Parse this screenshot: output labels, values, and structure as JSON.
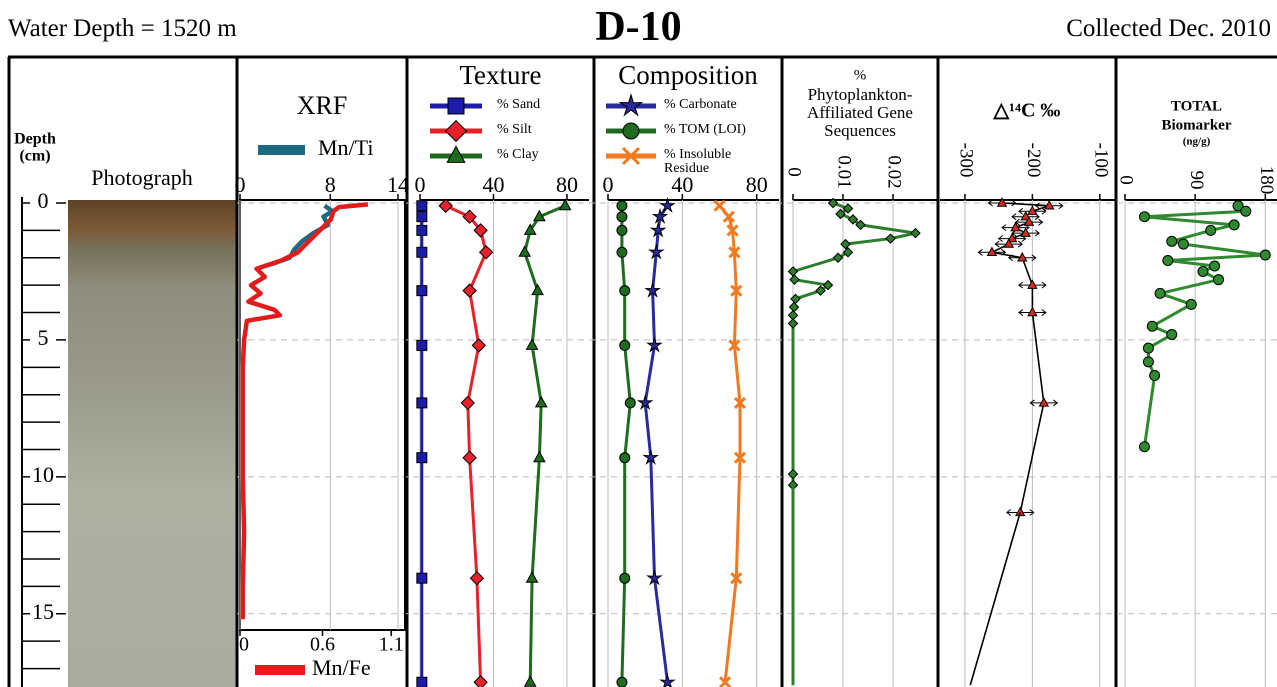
{
  "header": {
    "left": "Water Depth = 1520 m",
    "title": "D-10",
    "right": "Collected Dec. 2010"
  },
  "chart_data": [
    {
      "type": "depth-axis",
      "title": [
        "Depth",
        "(cm)"
      ],
      "ylim": [
        0,
        17.6
      ],
      "yticks": [
        0,
        5,
        10,
        15
      ],
      "minor_yticks": [
        1,
        2,
        3,
        4,
        6,
        7,
        8,
        9,
        11,
        12,
        13,
        14,
        16,
        17
      ]
    },
    {
      "type": "photo",
      "title": [
        "Photograph"
      ]
    },
    {
      "type": "line",
      "title": [
        "XRF"
      ],
      "xlim": [
        0,
        14
      ],
      "xticks": [
        0,
        8,
        14
      ],
      "x2lim": [
        0,
        1.2
      ],
      "x2ticks": [
        0,
        0.6,
        1.1
      ],
      "grid": true,
      "series": [
        {
          "name": "Mn/Ti",
          "color": "#1b6a82",
          "marker": null,
          "depth": [
            0.1,
            0.3,
            0.5,
            0.8,
            1.1,
            1.4,
            1.7,
            2.0,
            2.2,
            2.3
          ],
          "values": [
            7.5,
            8.2,
            7.4,
            7.8,
            6.5,
            5.5,
            4.8,
            4.4,
            3.0,
            2.2
          ]
        },
        {
          "name": "Mn/Fe",
          "color": "#e21b1b",
          "marker": null,
          "axis": "x2",
          "depth": [
            0.05,
            0.15,
            0.3,
            0.6,
            1.0,
            1.4,
            1.8,
            2.1,
            2.4,
            2.7,
            3.0,
            3.3,
            3.6,
            3.9,
            4.1,
            4.3,
            5,
            6,
            8,
            10,
            12,
            14,
            15.2
          ],
          "values": [
            0.93,
            0.72,
            0.68,
            0.66,
            0.58,
            0.5,
            0.42,
            0.3,
            0.12,
            0.18,
            0.08,
            0.15,
            0.06,
            0.25,
            0.29,
            0.05,
            0.03,
            0.02,
            0.02,
            0.02,
            0.03,
            0.02,
            0.02
          ]
        }
      ]
    },
    {
      "type": "line",
      "title": [
        "Texture"
      ],
      "xlim": [
        0,
        92
      ],
      "xticks": [
        0,
        40,
        80
      ],
      "grid": true,
      "series": [
        {
          "name": "% Sand",
          "color": "#1c1ca8",
          "marker": "square",
          "depth": [
            0.1,
            0.5,
            1.0,
            1.8,
            3.2,
            5.2,
            7.3,
            9.3,
            13.7,
            17.5
          ],
          "values": [
            1,
            1,
            1,
            1,
            1,
            1,
            1,
            1,
            1,
            1
          ]
        },
        {
          "name": "% Silt",
          "color": "#e8202a",
          "marker": "diamond",
          "depth": [
            0.1,
            0.5,
            1.0,
            1.8,
            3.2,
            5.2,
            7.3,
            9.3,
            13.7,
            17.5
          ],
          "values": [
            14,
            27,
            33,
            36,
            27,
            32,
            26,
            27,
            31,
            33
          ]
        },
        {
          "name": "% Clay",
          "color": "#1e6b1e",
          "marker": "triangle",
          "depth": [
            0.1,
            0.5,
            1.0,
            1.8,
            3.2,
            5.2,
            7.3,
            9.3,
            13.7,
            17.5
          ],
          "values": [
            79,
            65,
            60,
            57,
            64,
            61,
            66,
            65,
            61,
            60
          ]
        }
      ]
    },
    {
      "type": "line",
      "title": [
        "Composition"
      ],
      "xlim": [
        0,
        92
      ],
      "xticks": [
        0,
        40,
        80
      ],
      "grid": true,
      "series": [
        {
          "name": "% Carbonate",
          "color": "#2a2aa0",
          "marker": "star",
          "depth": [
            0.1,
            0.5,
            1.0,
            1.8,
            3.2,
            5.2,
            7.3,
            9.3,
            13.7,
            17.5
          ],
          "values": [
            32,
            28,
            27,
            26,
            24,
            25,
            20,
            23,
            25,
            32
          ]
        },
        {
          "name": "% TOM (LOI)",
          "color": "#1f6b1f",
          "marker": "circle",
          "depth": [
            0.1,
            0.5,
            1.0,
            1.8,
            3.2,
            5.2,
            7.3,
            9.3,
            13.7,
            17.5
          ],
          "values": [
            7.5,
            7.5,
            7.5,
            7.5,
            9,
            9,
            12,
            9,
            9,
            7.5
          ]
        },
        {
          "name": "% Insoluble Residue",
          "color": "#f07a20",
          "marker": "x",
          "depth": [
            0.1,
            0.5,
            1.0,
            1.8,
            3.2,
            5.2,
            7.3,
            9.3,
            13.7,
            17.5
          ],
          "values": [
            60,
            65,
            67,
            68,
            69,
            68,
            71,
            71,
            69,
            63
          ]
        }
      ]
    },
    {
      "type": "line",
      "title": [
        "%",
        "Phytoplankton-",
        "Affiliated Gene",
        "Sequences"
      ],
      "xlim": [
        0,
        0.029
      ],
      "xticks": [
        0,
        0.01,
        0.02
      ],
      "grid": true,
      "series": [
        {
          "color": "#2e7d2e",
          "marker": "diamond",
          "depth": [
            0,
            0.2,
            0.4,
            0.6,
            0.8,
            1.1,
            1.3,
            1.5,
            1.8,
            2.0,
            2.5,
            2.8,
            3.0,
            3.2,
            3.5,
            3.8,
            4.1,
            4.4,
            9.9,
            10.3
          ],
          "values": [
            0.008,
            0.011,
            0.0095,
            0.012,
            0.0135,
            0.0245,
            0.0195,
            0.0105,
            0.011,
            0.009,
            0,
            0.0003,
            0.007,
            0.0055,
            0.0005,
            0.0002,
            0,
            0,
            0,
            0
          ]
        },
        {
          "color": "#2e7d2e",
          "marker": null,
          "depth": [
            10.3,
            17.6
          ],
          "values": [
            0,
            0
          ]
        }
      ]
    },
    {
      "type": "line",
      "title": [
        "△¹⁴C ‰"
      ],
      "xlim": [
        -337,
        -76
      ],
      "xticks": [
        -300,
        -200,
        -100
      ],
      "grid": true,
      "series": [
        {
          "color": "#000000",
          "marker": "triangle",
          "marker_color": "#d62a20",
          "depth": [
            0.0,
            0.1,
            0.3,
            0.5,
            0.7,
            0.9,
            1.1,
            1.3,
            1.5,
            1.8,
            2.0,
            3.0,
            4.0,
            7.3,
            11.3
          ],
          "values": [
            -245,
            -175,
            -200,
            -210,
            -205,
            -225,
            -210,
            -230,
            -235,
            -260,
            -215,
            -200,
            -200,
            -183,
            -218
          ],
          "errors": [
            20,
            20,
            20,
            20,
            20,
            20,
            20,
            20,
            20,
            20,
            20,
            20,
            20,
            20,
            20
          ]
        },
        {
          "color": "#000000",
          "marker": null,
          "depth": [
            11.3,
            17.6
          ],
          "values": [
            -218,
            -292
          ]
        }
      ]
    },
    {
      "type": "line",
      "title": [
        "TOTAL",
        "Biomarker",
        "(ng/g)"
      ],
      "xlim": [
        0,
        195
      ],
      "xticks": [
        0,
        90,
        180
      ],
      "grid": true,
      "series": [
        {
          "color": "#2f8a2f",
          "marker": "circle",
          "depth": [
            0.1,
            0.3,
            0.5,
            0.8,
            1.0,
            1.4,
            1.5,
            1.9,
            2.1,
            2.3,
            2.5,
            2.8,
            3.3,
            3.7,
            4.5,
            4.8,
            5.3,
            5.8,
            6.3,
            8.9
          ],
          "values": [
            145,
            155,
            25,
            140,
            110,
            60,
            75,
            180,
            55,
            115,
            100,
            120,
            45,
            85,
            35,
            60,
            30,
            30,
            38,
            25
          ]
        }
      ]
    }
  ]
}
